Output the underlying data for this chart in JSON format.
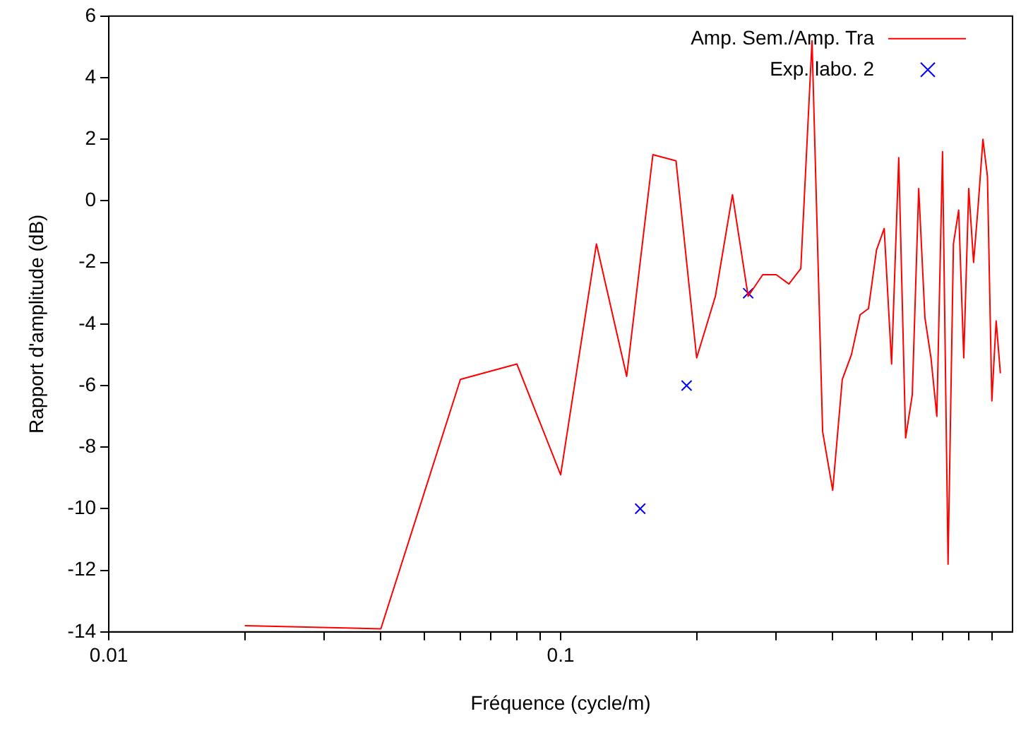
{
  "chart_data": {
    "type": "line",
    "xlabel": "Fréquence (cycle/m)",
    "ylabel": "Rapport d'amplitude (dB)",
    "log": "x",
    "grid": false,
    "legend": "top right",
    "xlim": [
      0.01,
      1
    ],
    "ylim": [
      -14,
      6
    ],
    "xticks": [
      0.01,
      {
        "value": 0.02,
        "label": null
      },
      {
        "value": 0.03,
        "label": null
      },
      {
        "value": 0.04,
        "label": null
      },
      {
        "value": 0.05,
        "label": null
      },
      {
        "value": 0.06,
        "label": null
      },
      {
        "value": 0.07,
        "label": null
      },
      {
        "value": 0.08,
        "label": null
      },
      {
        "value": 0.09,
        "label": null
      },
      0.1,
      {
        "value": 0.2,
        "label": null
      },
      {
        "value": 0.3,
        "label": null
      },
      {
        "value": 0.4,
        "label": null
      },
      {
        "value": 0.5,
        "label": null
      },
      {
        "value": 0.6,
        "label": null
      },
      {
        "value": 0.7,
        "label": null
      },
      {
        "value": 0.8,
        "label": null
      },
      {
        "value": 0.9,
        "label": null
      }
    ],
    "yticks": [
      -14,
      -12,
      -10,
      -8,
      -6,
      -4,
      -2,
      0,
      2,
      4,
      6
    ],
    "series": [
      {
        "name": "Amp. Sem./Amp. Tra",
        "type": "line",
        "color": "#ff0000",
        "marker": "none",
        "line_style": "solid",
        "x": [
          0.02,
          0.04,
          0.06,
          0.08,
          0.1,
          0.12,
          0.14,
          0.16,
          0.18,
          0.2,
          0.22,
          0.24,
          0.26,
          0.28,
          0.3,
          0.32,
          0.34,
          0.36,
          0.38,
          0.4,
          0.42,
          0.44,
          0.46,
          0.48,
          0.5,
          0.52,
          0.54,
          0.56,
          0.58,
          0.6,
          0.62,
          0.64,
          0.66,
          0.68,
          0.7,
          0.72,
          0.74,
          0.76,
          0.78,
          0.8,
          0.82,
          0.84,
          0.86,
          0.88,
          0.9,
          0.92,
          0.94
        ],
        "values": [
          -13.8,
          -13.9,
          -5.8,
          -5.3,
          -8.9,
          -1.4,
          -5.7,
          1.5,
          1.3,
          -5.1,
          -3.1,
          0.2,
          -3.1,
          -2.4,
          -2.4,
          -2.7,
          -2.2,
          5.2,
          -7.5,
          -9.4,
          -5.8,
          -5,
          -3.7,
          -3.5,
          -1.6,
          -0.9,
          -5.3,
          1.4,
          -7.7,
          -6.3,
          0.4,
          -3.8,
          -5.1,
          -7,
          1.6,
          -11.8,
          -1.4,
          -0.3,
          -5.1,
          0.4,
          -2,
          -0.1,
          2,
          0.8,
          -6.5,
          -3.9,
          -5.6
        ]
      },
      {
        "name": "Exp. labo. 2",
        "type": "scatter",
        "color": "#0000ff",
        "marker": "cross",
        "x": [
          0.15,
          0.19,
          0.26
        ],
        "values": [
          -10,
          -6,
          -3
        ]
      }
    ]
  }
}
